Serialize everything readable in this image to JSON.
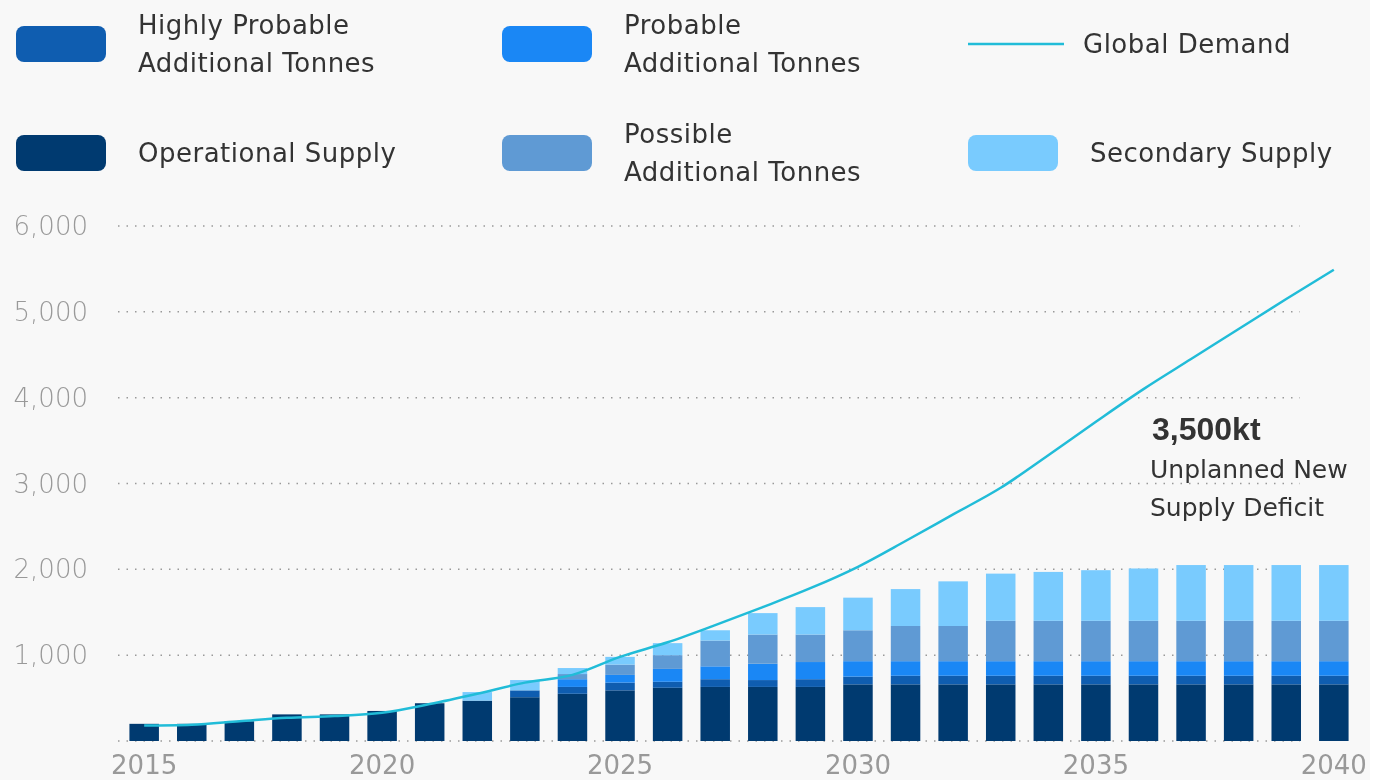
{
  "chart_data": {
    "type": "bar",
    "stacked": true,
    "legend": "top",
    "grid": "y",
    "x": [
      2015,
      2016,
      2017,
      2018,
      2019,
      2020,
      2021,
      2022,
      2023,
      2024,
      2025,
      2026,
      2027,
      2028,
      2029,
      2030,
      2031,
      2032,
      2033,
      2034,
      2035,
      2036,
      2037,
      2038,
      2039,
      2040
    ],
    "xlim": [
      2014.45,
      2040.55
    ],
    "xticks": [
      2015,
      2020,
      2025,
      2030,
      2035,
      2040
    ],
    "ylim": [
      0,
      6000
    ],
    "yticks": [
      {
        "value": 0,
        "label": null
      },
      {
        "value": 1000,
        "label": "1,000"
      },
      {
        "value": 2000,
        "label": "2,000"
      },
      {
        "value": 3000,
        "label": "3,000"
      },
      {
        "value": 4000,
        "label": "4,000"
      },
      {
        "value": 5000,
        "label": "5,000"
      },
      {
        "value": 6000,
        "label": "6,000"
      }
    ],
    "series": [
      {
        "name": "Operational Supply",
        "color": "#003a70",
        "values": [
          200,
          200,
          230,
          310,
          310,
          350,
          440,
          470,
          510,
          550,
          590,
          620,
          630,
          630,
          630,
          660,
          660,
          660,
          660,
          660,
          660,
          660,
          660,
          660,
          660,
          660
        ]
      },
      {
        "name": "Highly Probable Additional Tonnes",
        "color": "#0f5db0",
        "values": [
          0,
          0,
          0,
          0,
          0,
          0,
          0,
          0,
          80,
          80,
          90,
          70,
          90,
          80,
          90,
          90,
          100,
          100,
          100,
          100,
          100,
          100,
          100,
          100,
          100,
          100
        ]
      },
      {
        "name": "Probable Additional Tonnes",
        "color": "#1a87f5",
        "values": [
          0,
          0,
          0,
          0,
          0,
          0,
          0,
          0,
          0,
          90,
          90,
          150,
          150,
          190,
          200,
          180,
          170,
          170,
          170,
          170,
          170,
          170,
          170,
          170,
          170,
          170
        ]
      },
      {
        "name": "Possible Additional Tonnes",
        "color": "#5f9ad4",
        "values": [
          0,
          0,
          0,
          0,
          0,
          0,
          0,
          0,
          0,
          60,
          120,
          160,
          300,
          340,
          320,
          360,
          410,
          410,
          470,
          470,
          470,
          470,
          470,
          470,
          470,
          470
        ]
      },
      {
        "name": "Secondary Supply",
        "color": "#79cbfe",
        "values": [
          0,
          0,
          0,
          0,
          0,
          0,
          0,
          100,
          120,
          70,
          90,
          140,
          120,
          250,
          320,
          380,
          430,
          520,
          550,
          570,
          590,
          610,
          650,
          650,
          650,
          650
        ]
      },
      {
        "name": "Global Demand",
        "type": "line",
        "color": "#21bcd8",
        "values": [
          180,
          190,
          230,
          270,
          290,
          330,
          430,
          550,
          680,
          770,
          980,
          1150,
          1350,
          1560,
          1780,
          2030,
          2330,
          2640,
          2950,
          3330,
          3720,
          4100,
          4450,
          4800,
          5150,
          5490
        ]
      }
    ],
    "annotations": [
      "3,500kt",
      "Unplanned New Supply Deficit"
    ]
  }
}
